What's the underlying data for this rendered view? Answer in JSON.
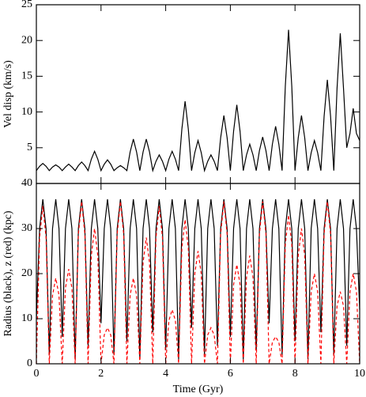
{
  "chart_data": [
    {
      "type": "line",
      "ylabel": "Vel disp (km/s)",
      "xlim": [
        0,
        10
      ],
      "xticks": [
        0,
        2,
        4,
        6,
        8,
        10
      ],
      "ylim": [
        0,
        25
      ],
      "yticks": [
        5,
        10,
        15,
        20,
        25
      ],
      "x": [
        0,
        0.1,
        0.2,
        0.3,
        0.4,
        0.5,
        0.6,
        0.7,
        0.8,
        0.9,
        1,
        1.1,
        1.2,
        1.3,
        1.4,
        1.5,
        1.6,
        1.7,
        1.8,
        1.9,
        2,
        2.1,
        2.2,
        2.3,
        2.4,
        2.5,
        2.6,
        2.7,
        2.8,
        2.9,
        3,
        3.1,
        3.2,
        3.3,
        3.4,
        3.5,
        3.6,
        3.7,
        3.8,
        3.9,
        4,
        4.1,
        4.2,
        4.3,
        4.4,
        4.5,
        4.6,
        4.7,
        4.8,
        4.9,
        5,
        5.1,
        5.2,
        5.3,
        5.4,
        5.5,
        5.6,
        5.7,
        5.8,
        5.9,
        6,
        6.1,
        6.2,
        6.3,
        6.4,
        6.5,
        6.6,
        6.7,
        6.8,
        6.9,
        7,
        7.1,
        7.2,
        7.3,
        7.4,
        7.5,
        7.6,
        7.7,
        7.8,
        7.9,
        8,
        8.1,
        8.2,
        8.3,
        8.4,
        8.5,
        8.6,
        8.7,
        8.8,
        8.9,
        9,
        9.1,
        9.2,
        9.3,
        9.4,
        9.5,
        9.6,
        9.7,
        9.8,
        9.9,
        10
      ],
      "series": [
        {
          "name": "Vel disp",
          "color": "#000000",
          "dash": false,
          "values": [
            1.8,
            2.4,
            2.8,
            2.4,
            1.8,
            2.3,
            2.6,
            2.3,
            1.8,
            2.3,
            2.7,
            2.3,
            1.8,
            2.5,
            3,
            2.5,
            1.8,
            3.4,
            4.5,
            3.4,
            1.8,
            2.7,
            3.3,
            2.7,
            1.8,
            2.2,
            2.5,
            2.2,
            1.8,
            4.4,
            6.2,
            4.4,
            1.8,
            4.4,
            6.2,
            4.4,
            1.8,
            3.1,
            4,
            3.1,
            1.8,
            3.4,
            4.5,
            3.4,
            1.8,
            7.6,
            11.5,
            7.6,
            1.8,
            4.3,
            6,
            4.3,
            1.8,
            3.1,
            4,
            3.1,
            1.8,
            6.4,
            9.5,
            6.4,
            1.8,
            7.3,
            11,
            7.3,
            1.8,
            4,
            5.5,
            4,
            1.8,
            4.6,
            6.5,
            4.6,
            1.8,
            5.5,
            8,
            5.5,
            1.8,
            13.6,
            21.5,
            13.6,
            1.8,
            6.4,
            9.5,
            6.4,
            1.8,
            4.3,
            6,
            4.3,
            1.8,
            9.4,
            14.5,
            9.4,
            1.8,
            13.3,
            21,
            13.3,
            5,
            7,
            10.5,
            7,
            6
          ]
        }
      ]
    },
    {
      "type": "line",
      "xlabel": "Time (Gyr)",
      "ylabel": "Radius (black), z (red) (kpc)",
      "xlim": [
        0,
        10
      ],
      "xticks": [
        0,
        2,
        4,
        6,
        8,
        10
      ],
      "ylim": [
        0,
        40
      ],
      "yticks": [
        0,
        10,
        20,
        30,
        40
      ],
      "x": [
        0,
        0.1,
        0.2,
        0.3,
        0.4,
        0.5,
        0.6,
        0.7,
        0.8,
        0.9,
        1,
        1.1,
        1.2,
        1.3,
        1.4,
        1.5,
        1.6,
        1.7,
        1.8,
        1.9,
        2,
        2.1,
        2.2,
        2.3,
        2.4,
        2.5,
        2.6,
        2.7,
        2.8,
        2.9,
        3,
        3.1,
        3.2,
        3.3,
        3.4,
        3.5,
        3.6,
        3.7,
        3.8,
        3.9,
        4,
        4.1,
        4.2,
        4.3,
        4.4,
        4.5,
        4.6,
        4.7,
        4.8,
        4.9,
        5,
        5.1,
        5.2,
        5.3,
        5.4,
        5.5,
        5.6,
        5.7,
        5.8,
        5.9,
        6,
        6.1,
        6.2,
        6.3,
        6.4,
        6.5,
        6.6,
        6.7,
        6.8,
        6.9,
        7,
        7.1,
        7.2,
        7.3,
        7.4,
        7.5,
        7.6,
        7.7,
        7.8,
        7.9,
        8,
        8.1,
        8.2,
        8.3,
        8.4,
        8.5,
        8.6,
        8.7,
        8.8,
        8.9,
        9,
        9.1,
        9.2,
        9.3,
        9.4,
        9.5,
        9.6,
        9.7,
        9.8,
        9.9,
        10
      ],
      "series": [
        {
          "name": "Radius",
          "color": "#000000",
          "dash": false,
          "values": [
            10,
            30,
            36.5,
            30,
            2,
            30,
            36.5,
            30,
            6,
            30,
            36.5,
            30,
            1,
            30,
            36.5,
            30,
            4,
            30,
            36.5,
            30,
            9,
            30,
            36.5,
            30,
            2,
            30,
            36.5,
            30,
            5,
            30,
            36.5,
            30,
            1,
            30,
            36.5,
            30,
            7,
            30,
            36.5,
            30,
            3,
            30,
            36.5,
            30,
            1,
            30,
            36.5,
            30,
            8,
            30,
            36.5,
            30,
            2,
            30,
            36.5,
            30,
            4,
            30,
            36.5,
            30,
            6,
            30,
            36.5,
            30,
            1,
            30,
            36.5,
            30,
            3,
            30,
            36.5,
            30,
            9,
            30,
            36.5,
            30,
            2,
            30,
            36.5,
            30,
            5,
            30,
            36.5,
            30,
            1,
            30,
            36.5,
            30,
            7,
            30,
            36.5,
            30,
            2,
            30,
            36.5,
            30,
            4,
            30,
            36.5,
            30,
            12
          ]
        },
        {
          "name": "z",
          "color": "#ff0000",
          "dash": true,
          "values": [
            0,
            28,
            35,
            28,
            0,
            15.2,
            19,
            15.2,
            0,
            16.8,
            21,
            16.8,
            0,
            28.8,
            36,
            28.8,
            0,
            24,
            30,
            24,
            0,
            6.4,
            8,
            6.4,
            0,
            28.8,
            36,
            28.8,
            0,
            15.2,
            19,
            15.2,
            0,
            22.4,
            28,
            22.4,
            0,
            28,
            35,
            28,
            0,
            9.6,
            12,
            9.6,
            0,
            25.6,
            32,
            25.6,
            0,
            20,
            25,
            20,
            0,
            6.4,
            8,
            6.4,
            0,
            28.8,
            36,
            28.8,
            0,
            17.6,
            22,
            17.6,
            0,
            19.2,
            24,
            19.2,
            0,
            28.8,
            36,
            28.8,
            0,
            4.8,
            6,
            4.8,
            0,
            26.4,
            33,
            26.4,
            0,
            24,
            30,
            24,
            0,
            16,
            20,
            16,
            0,
            28.8,
            36,
            28.8,
            0,
            12.8,
            16,
            12.8,
            0,
            16,
            20,
            16,
            0
          ]
        }
      ]
    }
  ]
}
